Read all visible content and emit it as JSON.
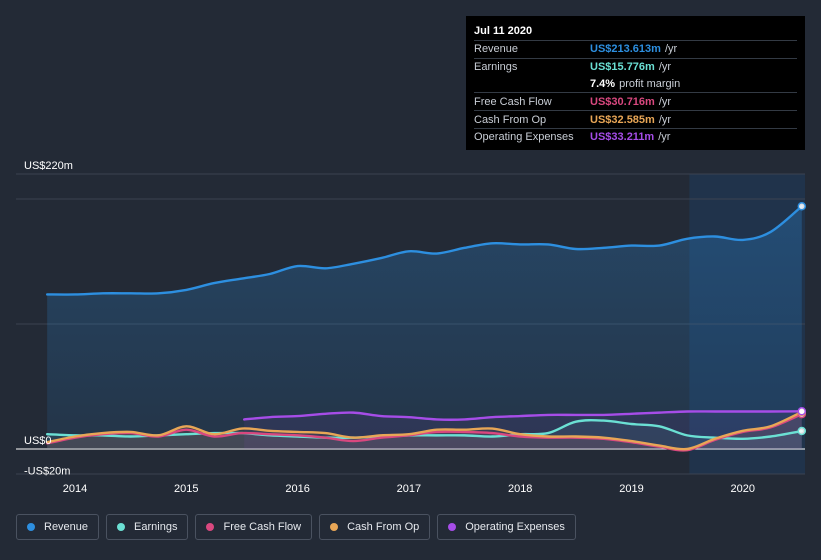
{
  "tooltip": {
    "date": "Jul 11 2020",
    "rows": {
      "revenue": {
        "label": "Revenue",
        "value": "US$213.613m",
        "unit": "/yr",
        "color": "#2d8fe0"
      },
      "earnings": {
        "label": "Earnings",
        "value": "US$15.776m",
        "unit": "/yr",
        "color": "#6be0d4"
      },
      "margin": {
        "value": "7.4%",
        "text": "profit margin"
      },
      "fcf": {
        "label": "Free Cash Flow",
        "value": "US$30.716m",
        "unit": "/yr",
        "color": "#d9487f"
      },
      "cfo": {
        "label": "Cash From Op",
        "value": "US$32.585m",
        "unit": "/yr",
        "color": "#e8a656"
      },
      "opex": {
        "label": "Operating Expenses",
        "value": "US$33.211m",
        "unit": "/yr",
        "color": "#a64de8"
      }
    }
  },
  "legend": [
    {
      "label": "Revenue",
      "color": "#2d8fe0"
    },
    {
      "label": "Earnings",
      "color": "#6be0d4"
    },
    {
      "label": "Free Cash Flow",
      "color": "#d9487f"
    },
    {
      "label": "Cash From Op",
      "color": "#e8a656"
    },
    {
      "label": "Operating Expenses",
      "color": "#a64de8"
    }
  ],
  "chart_data": {
    "type": "area",
    "ylim": [
      -20,
      220
    ],
    "y_tick_labels": [
      {
        "value": 220,
        "label": "US$220m"
      },
      {
        "value": 0,
        "label": "US$0"
      },
      {
        "value": -20,
        "label": "-US$20m"
      }
    ],
    "x_tick_labels": [
      "2014",
      "2015",
      "2016",
      "2017",
      "2018",
      "2019",
      "2020"
    ],
    "x_range": [
      2013.75,
      2020.53
    ],
    "highlight_from": 2019.52,
    "series": [
      {
        "name": "Revenue",
        "color": "#2d8fe0",
        "x": [
          2013.75,
          2014.0,
          2014.25,
          2014.5,
          2014.75,
          2015.0,
          2015.25,
          2015.5,
          2015.75,
          2016.0,
          2016.25,
          2016.5,
          2016.75,
          2017.0,
          2017.25,
          2017.5,
          2017.75,
          2018.0,
          2018.25,
          2018.5,
          2018.75,
          2019.0,
          2019.25,
          2019.5,
          2019.75,
          2020.0,
          2020.25,
          2020.53
        ],
        "y": [
          136,
          136,
          137,
          137,
          137,
          140,
          146,
          150,
          154,
          161,
          159,
          163,
          168,
          174,
          172,
          177,
          181,
          180,
          180,
          176,
          177,
          179,
          179,
          185,
          187,
          184,
          191,
          213.6
        ]
      },
      {
        "name": "Earnings",
        "color": "#6be0d4",
        "x": [
          2013.75,
          2014.0,
          2014.25,
          2014.5,
          2014.75,
          2015.0,
          2015.25,
          2015.5,
          2015.75,
          2016.0,
          2016.25,
          2016.5,
          2016.75,
          2017.0,
          2017.25,
          2017.5,
          2017.75,
          2018.0,
          2018.25,
          2018.5,
          2018.75,
          2019.0,
          2019.25,
          2019.5,
          2019.75,
          2020.0,
          2020.25,
          2020.53
        ],
        "y": [
          13,
          12,
          12,
          11,
          12,
          13,
          14,
          14,
          12,
          11,
          10,
          10,
          11,
          12,
          12,
          12,
          11,
          13,
          14,
          24,
          25,
          22,
          20,
          12,
          10,
          9,
          11,
          15.8
        ]
      },
      {
        "name": "Free Cash Flow",
        "color": "#d9487f",
        "x": [
          2013.75,
          2014.0,
          2014.25,
          2014.5,
          2014.75,
          2015.0,
          2015.25,
          2015.5,
          2015.75,
          2016.0,
          2016.25,
          2016.5,
          2016.75,
          2017.0,
          2017.25,
          2017.5,
          2017.75,
          2018.0,
          2018.25,
          2018.5,
          2018.75,
          2019.0,
          2019.25,
          2019.5,
          2019.75,
          2020.0,
          2020.25,
          2020.53
        ],
        "y": [
          5,
          10,
          13,
          14,
          11,
          17,
          11,
          14,
          13,
          12,
          10,
          7,
          10,
          12,
          15,
          15,
          14,
          11,
          10,
          10,
          9,
          6,
          2,
          -1,
          8,
          15,
          19,
          30.7
        ]
      },
      {
        "name": "Cash From Op",
        "color": "#e8a656",
        "x": [
          2013.75,
          2014.0,
          2014.25,
          2014.5,
          2014.75,
          2015.0,
          2015.25,
          2015.5,
          2015.75,
          2016.0,
          2016.25,
          2016.5,
          2016.75,
          2017.0,
          2017.25,
          2017.5,
          2017.75,
          2018.0,
          2018.25,
          2018.5,
          2018.75,
          2019.0,
          2019.25,
          2019.5,
          2019.75,
          2020.0,
          2020.25,
          2020.53
        ],
        "y": [
          6,
          11,
          14,
          15,
          12,
          20,
          13,
          18,
          16,
          15,
          14,
          10,
          12,
          13,
          17,
          17,
          18,
          13,
          11,
          11,
          10,
          7,
          3,
          0,
          9,
          16,
          20,
          32.6
        ]
      },
      {
        "name": "Operating Expenses",
        "color": "#a64de8",
        "x": [
          2015.52,
          2015.75,
          2016.0,
          2016.25,
          2016.5,
          2016.75,
          2017.0,
          2017.25,
          2017.5,
          2017.75,
          2018.0,
          2018.25,
          2018.5,
          2018.75,
          2019.0,
          2019.25,
          2019.5,
          2019.75,
          2020.0,
          2020.25,
          2020.53
        ],
        "y": [
          26,
          28,
          29,
          31,
          32,
          29,
          28,
          26,
          26,
          28,
          29,
          30,
          30,
          30,
          31,
          32,
          33,
          33,
          33,
          33,
          33.2
        ]
      }
    ]
  }
}
